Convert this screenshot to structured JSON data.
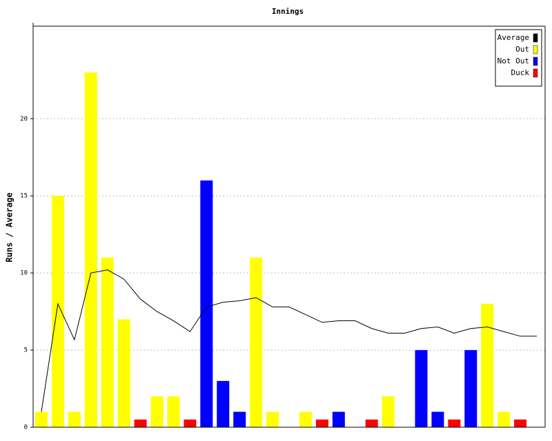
{
  "chart_data": {
    "type": "bar",
    "title": "Innings",
    "y_label": "Runs / Average",
    "categories": [
      null,
      null,
      null,
      null,
      null,
      null,
      null,
      null,
      null,
      null,
      null,
      null,
      null,
      null,
      null,
      null,
      null,
      null,
      null,
      null,
      null,
      null,
      null,
      null,
      null,
      null,
      null,
      null,
      null,
      null,
      null
    ],
    "ylim": [
      0,
      26
    ],
    "yticks": [
      0,
      5,
      10,
      15,
      20
    ],
    "grid": true,
    "legend": "top-right",
    "series": [
      {
        "name": "Average",
        "color": "#000000",
        "type": "line",
        "values": [
          1,
          8,
          5.67,
          10,
          10.2,
          9.6,
          8.3,
          7.5,
          6.9,
          6.2,
          7.8,
          8.1,
          8.2,
          8.4,
          7.8,
          7.8,
          7.3,
          6.8,
          6.9,
          6.9,
          6.4,
          6.1,
          6.1,
          6.4,
          6.5,
          6.1,
          6.4,
          6.5,
          6.2,
          5.9,
          5.9
        ]
      },
      {
        "name": "Out",
        "color": "#ffff00",
        "values": [
          1,
          15,
          1,
          23,
          11,
          7,
          null,
          2,
          2,
          null,
          null,
          null,
          null,
          11,
          1,
          null,
          1,
          null,
          null,
          null,
          null,
          2,
          null,
          null,
          null,
          null,
          null,
          8,
          1,
          null,
          null
        ]
      },
      {
        "name": "Not Out",
        "color": "#0000ff",
        "values": [
          null,
          null,
          null,
          null,
          null,
          null,
          null,
          null,
          null,
          null,
          16,
          3,
          1,
          null,
          null,
          null,
          null,
          null,
          1,
          null,
          null,
          null,
          null,
          5,
          1,
          null,
          5,
          null,
          null,
          null,
          null
        ]
      },
      {
        "name": "Duck",
        "color": "#ff0000",
        "values": [
          null,
          null,
          null,
          null,
          null,
          null,
          0.5,
          null,
          null,
          0.5,
          null,
          null,
          null,
          null,
          null,
          null,
          null,
          0.5,
          null,
          null,
          0.5,
          null,
          null,
          null,
          null,
          0.5,
          null,
          null,
          null,
          0.5,
          null
        ]
      }
    ]
  }
}
